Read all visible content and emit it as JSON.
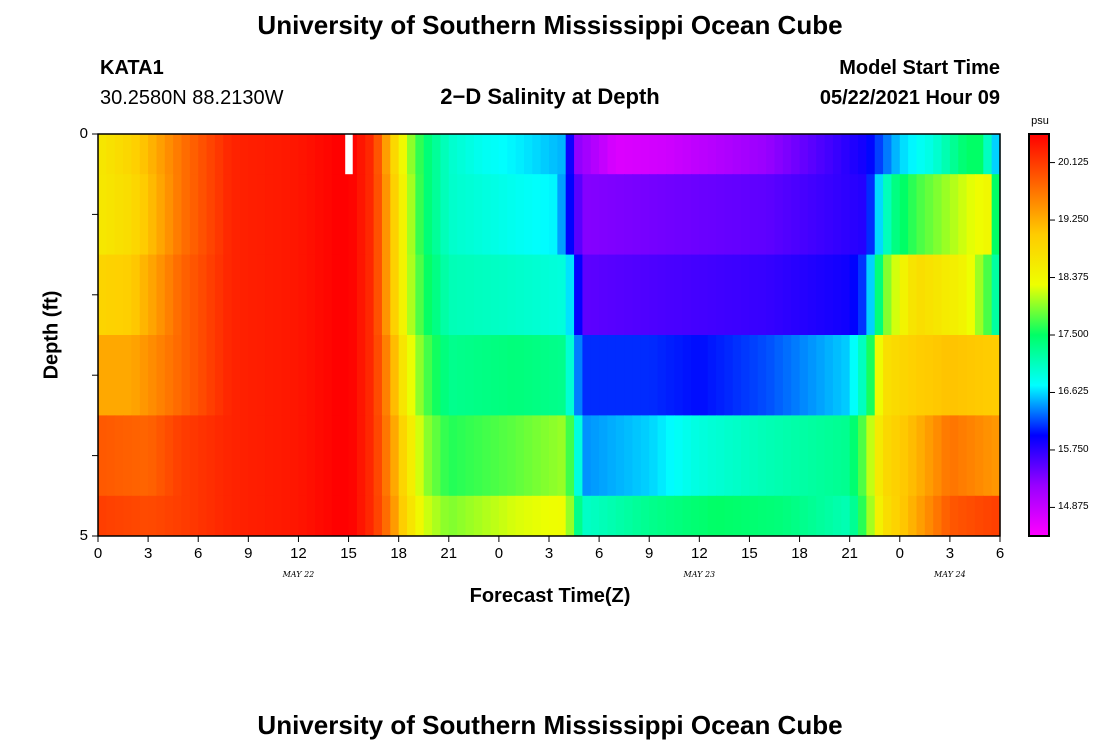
{
  "header": {
    "title": "University of Southern Mississippi Ocean Cube",
    "station": "KATA1",
    "location": "30.2580N  88.2130W",
    "subtitle": "2−D Salinity at Depth",
    "model_start_label": "Model Start Time",
    "model_start_value": "05/22/2021 Hour 09"
  },
  "footer": {
    "title": "University of Southern Mississippi Ocean Cube"
  },
  "colorbar": {
    "unit": "psu",
    "ticks": [
      "20.125",
      "19.250",
      "18.375",
      "17.500",
      "16.625",
      "15.750",
      "14.875"
    ],
    "colors": [
      "#ff00ff",
      "#9900ff",
      "#0000ff",
      "#00ffff",
      "#00ff66",
      "#eeff00",
      "#ffcc00",
      "#ff6600",
      "#ff0000"
    ]
  },
  "chart_data": {
    "type": "heatmap",
    "title": "2−D Salinity at Depth",
    "xlabel": "Forecast Time(Z)",
    "ylabel": "Depth (ft)",
    "x_tick_labels": [
      "0",
      "3",
      "6",
      "9",
      "12",
      "15",
      "18",
      "21",
      "0",
      "3",
      "6",
      "9",
      "12",
      "15",
      "18",
      "21",
      "0",
      "3",
      "6"
    ],
    "y_tick_labels": [
      "0",
      "5"
    ],
    "date_labels": [
      {
        "text": "MAY 22",
        "hour": 12
      },
      {
        "text": "MAY 23",
        "hour": 36
      },
      {
        "text": "MAY 24",
        "hour": 51
      }
    ],
    "x_range_hours": [
      0,
      54
    ],
    "y_range_ft": [
      0,
      5
    ],
    "value_range_psu": [
      14.44,
      20.56
    ],
    "depth_bands": [
      {
        "name": "0-0.5 ft",
        "keyframes": [
          [
            0,
            18.6
          ],
          [
            2,
            18.9
          ],
          [
            5,
            19.7
          ],
          [
            8,
            20.3
          ],
          [
            12,
            20.4
          ],
          [
            15,
            20.6
          ],
          [
            16.5,
            20.2
          ],
          [
            17.5,
            19.1
          ],
          [
            18.5,
            18.1
          ],
          [
            19.5,
            17.5
          ],
          [
            21,
            17.0
          ],
          [
            23,
            16.8
          ],
          [
            25,
            16.7
          ],
          [
            28,
            16.5
          ],
          [
            28.5,
            15.3
          ],
          [
            31,
            14.7
          ],
          [
            34,
            14.8
          ],
          [
            40,
            15.2
          ],
          [
            46,
            15.9
          ],
          [
            48,
            16.6
          ],
          [
            50,
            16.9
          ],
          [
            52,
            17.5
          ],
          [
            53,
            17.5
          ],
          [
            53.5,
            16.6
          ],
          [
            54,
            16.6
          ]
        ]
      },
      {
        "name": "0.5-1.5 ft",
        "keyframes": [
          [
            0,
            18.6
          ],
          [
            2,
            18.8
          ],
          [
            5,
            19.7
          ],
          [
            8,
            20.3
          ],
          [
            12,
            20.4
          ],
          [
            15,
            20.6
          ],
          [
            16.5,
            20.2
          ],
          [
            17.5,
            19.2
          ],
          [
            18.5,
            18.2
          ],
          [
            19.5,
            17.5
          ],
          [
            21,
            17.0
          ],
          [
            25,
            16.8
          ],
          [
            27.5,
            16.7
          ],
          [
            28,
            16.2
          ],
          [
            29,
            15.3
          ],
          [
            34,
            15.4
          ],
          [
            40,
            15.5
          ],
          [
            46,
            15.8
          ],
          [
            46.5,
            16.4
          ],
          [
            47.5,
            17.3
          ],
          [
            49,
            17.7
          ],
          [
            52,
            18.2
          ],
          [
            53.5,
            18.4
          ],
          [
            54,
            16.6
          ]
        ]
      },
      {
        "name": "1.5-2.5 ft",
        "keyframes": [
          [
            0,
            18.9
          ],
          [
            2,
            19.0
          ],
          [
            5,
            19.8
          ],
          [
            8,
            20.3
          ],
          [
            12,
            20.4
          ],
          [
            15,
            20.6
          ],
          [
            16.5,
            20.2
          ],
          [
            17.5,
            19.2
          ],
          [
            18.5,
            18.2
          ],
          [
            19.5,
            17.6
          ],
          [
            21,
            17.1
          ],
          [
            25,
            17.0
          ],
          [
            28,
            16.9
          ],
          [
            28.5,
            16.4
          ],
          [
            29,
            15.5
          ],
          [
            34,
            15.6
          ],
          [
            40,
            15.7
          ],
          [
            45,
            15.9
          ],
          [
            46,
            16.2
          ],
          [
            47,
            17.8
          ],
          [
            49,
            18.8
          ],
          [
            52,
            18.4
          ],
          [
            53.5,
            17.6
          ],
          [
            54,
            16.8
          ]
        ]
      },
      {
        "name": "2.5-3.5 ft",
        "keyframes": [
          [
            0,
            19.3
          ],
          [
            2,
            19.3
          ],
          [
            5,
            19.8
          ],
          [
            8,
            20.3
          ],
          [
            12,
            20.4
          ],
          [
            15,
            20.6
          ],
          [
            16.5,
            20.2
          ],
          [
            17.5,
            19.4
          ],
          [
            18.5,
            18.4
          ],
          [
            19.5,
            17.8
          ],
          [
            21,
            17.3
          ],
          [
            25,
            17.4
          ],
          [
            28,
            17.3
          ],
          [
            28.5,
            16.6
          ],
          [
            29,
            16.1
          ],
          [
            33,
            16.1
          ],
          [
            36,
            16.0
          ],
          [
            40,
            16.2
          ],
          [
            45,
            16.6
          ],
          [
            46,
            17.2
          ],
          [
            47,
            18.7
          ],
          [
            49,
            19.0
          ],
          [
            51,
            19.1
          ],
          [
            54,
            19.0
          ]
        ]
      },
      {
        "name": "3.5-4.5 ft",
        "keyframes": [
          [
            0,
            19.9
          ],
          [
            3,
            19.8
          ],
          [
            5,
            20.1
          ],
          [
            8,
            20.3
          ],
          [
            12,
            20.4
          ],
          [
            15,
            20.6
          ],
          [
            16.5,
            20.2
          ],
          [
            17.5,
            19.5
          ],
          [
            18.5,
            18.7
          ],
          [
            19.5,
            18.0
          ],
          [
            21,
            17.6
          ],
          [
            25,
            17.8
          ],
          [
            28,
            18.0
          ],
          [
            28.5,
            17.4
          ],
          [
            29,
            16.4
          ],
          [
            33,
            16.6
          ],
          [
            36,
            16.9
          ],
          [
            40,
            17.1
          ],
          [
            45,
            17.3
          ],
          [
            46,
            17.9
          ],
          [
            47,
            18.8
          ],
          [
            49,
            19.2
          ],
          [
            51,
            19.7
          ],
          [
            54,
            19.4
          ]
        ]
      },
      {
        "name": "4.5-5 ft",
        "keyframes": [
          [
            0,
            20.1
          ],
          [
            3,
            20.0
          ],
          [
            5,
            20.1
          ],
          [
            8,
            20.3
          ],
          [
            12,
            20.4
          ],
          [
            15,
            20.6
          ],
          [
            16.5,
            20.2
          ],
          [
            17.5,
            19.6
          ],
          [
            18.5,
            18.8
          ],
          [
            19.5,
            18.2
          ],
          [
            21,
            17.9
          ],
          [
            25,
            18.2
          ],
          [
            28,
            18.3
          ],
          [
            29,
            17.0
          ],
          [
            33,
            17.3
          ],
          [
            37,
            17.5
          ],
          [
            41,
            17.4
          ],
          [
            45,
            17.1
          ],
          [
            46,
            17.8
          ],
          [
            47,
            18.7
          ],
          [
            49,
            19.3
          ],
          [
            51,
            19.9
          ],
          [
            54,
            20.1
          ]
        ]
      }
    ]
  }
}
